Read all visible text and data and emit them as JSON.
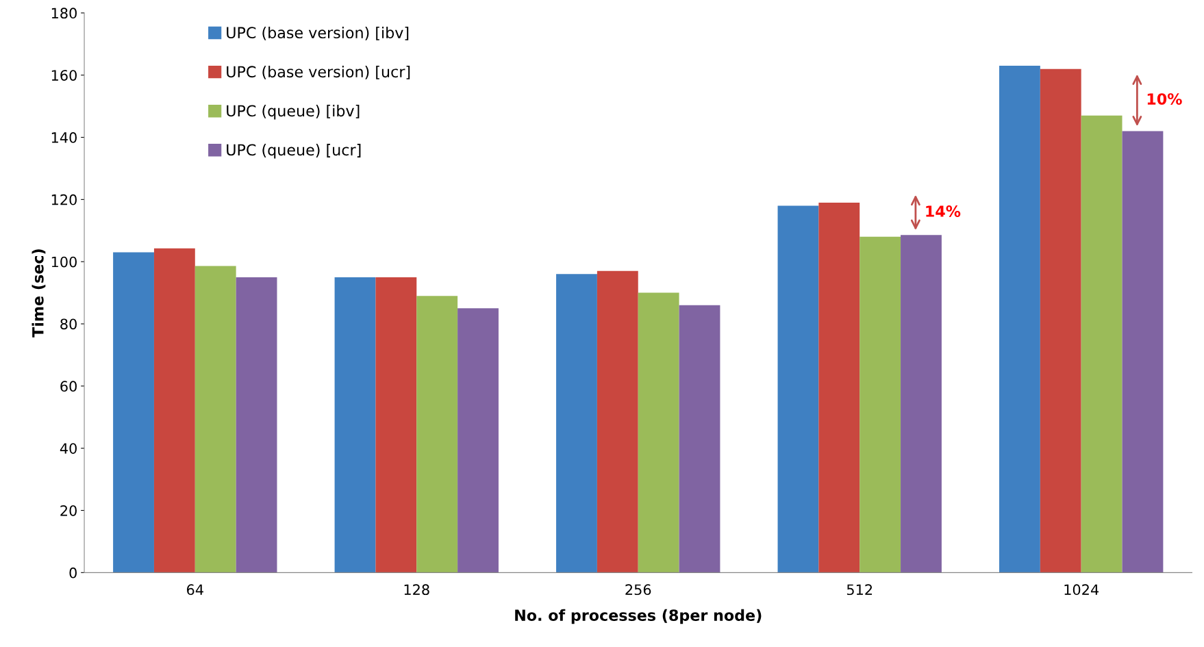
{
  "chart_data": {
    "type": "bar",
    "xlabel": "No. of processes (8per node)",
    "ylabel": "Time (sec)",
    "categories": [
      "64",
      "128",
      "256",
      "512",
      "1024"
    ],
    "series": [
      {
        "name": "UPC (base version) [ibv]",
        "color": "#3f80c2",
        "values": [
          103,
          95,
          96,
          118,
          163
        ]
      },
      {
        "name": "UPC (base version) [ucr]",
        "color": "#c9473f",
        "values": [
          104.3,
          95,
          97,
          119,
          162
        ]
      },
      {
        "name": "UPC (queue) [ibv]",
        "color": "#9bbb59",
        "values": [
          98.6,
          89,
          90,
          108,
          147
        ]
      },
      {
        "name": "UPC (queue) [ucr]",
        "color": "#8064a2",
        "values": [
          95,
          85,
          86,
          108.6,
          142
        ]
      }
    ],
    "ylim": [
      0,
      180
    ],
    "yticks": [
      0,
      20,
      40,
      60,
      80,
      100,
      120,
      140,
      160,
      180
    ],
    "grid": false,
    "legend": "top left",
    "annotations": [
      "14%",
      "10%"
    ]
  }
}
